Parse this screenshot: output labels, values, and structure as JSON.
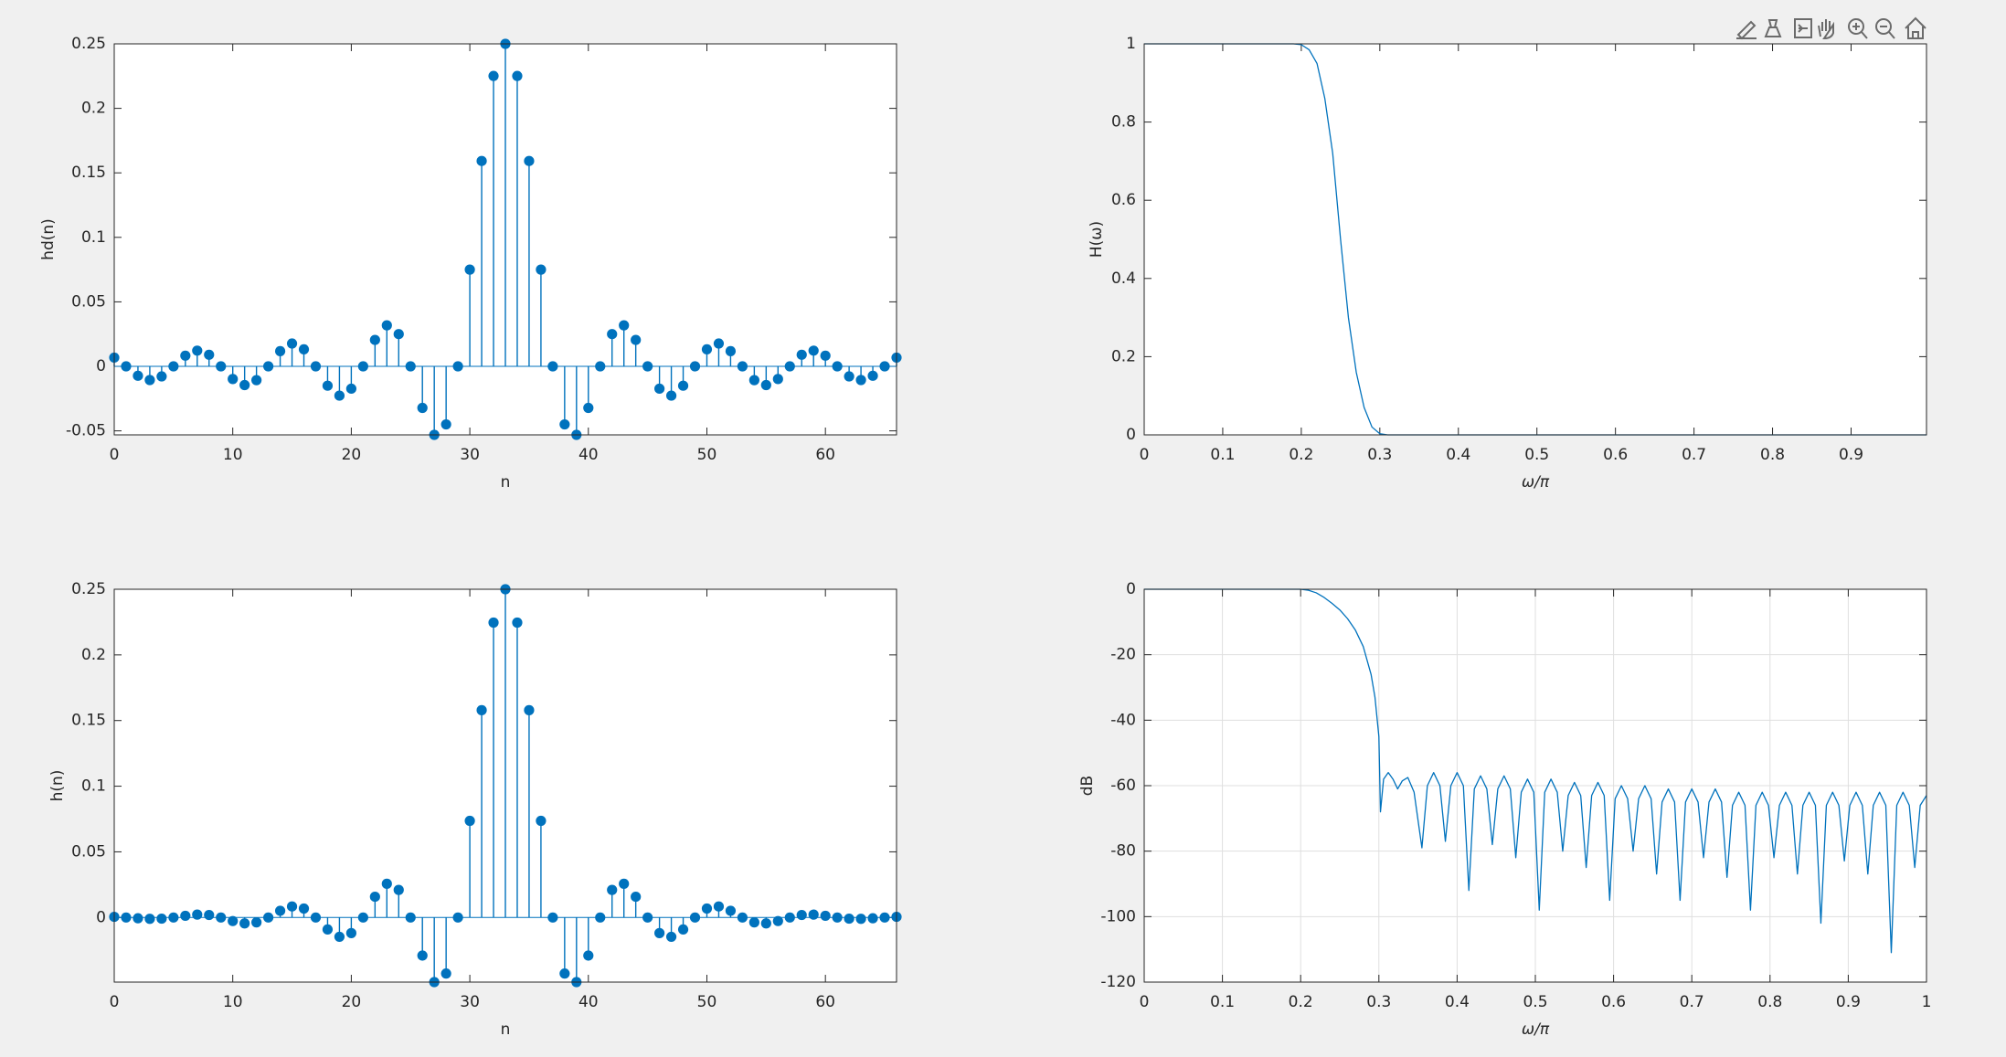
{
  "chart_data": [
    {
      "type": "stem",
      "ylabel": "hd(n)",
      "xlabel": "n",
      "color": "#0072bd",
      "xlim": [
        0,
        66
      ],
      "ylim": [
        -0.0531,
        0.25
      ],
      "xticks": [
        0,
        10,
        20,
        30,
        40,
        50,
        60
      ],
      "yticks": [
        -0.05,
        0,
        0.05,
        0.1,
        0.15,
        0.2,
        0.25
      ],
      "grid": false,
      "x": [
        0,
        1,
        2,
        3,
        4,
        5,
        6,
        7,
        8,
        9,
        10,
        11,
        12,
        13,
        14,
        15,
        16,
        17,
        18,
        19,
        20,
        21,
        22,
        23,
        24,
        25,
        26,
        27,
        28,
        29,
        30,
        31,
        32,
        33,
        34,
        35,
        36,
        37,
        38,
        39,
        40,
        41,
        42,
        43,
        44,
        45,
        46,
        47,
        48,
        49,
        50,
        51,
        52,
        53,
        54,
        55,
        56,
        57,
        58,
        59,
        60,
        61,
        62,
        63,
        64,
        65,
        66
      ],
      "values": [
        0.0068,
        0,
        -0.0073,
        -0.0106,
        -0.0078,
        0,
        0.0083,
        0.0122,
        0.009,
        0,
        -0.0098,
        -0.0145,
        -0.0107,
        0,
        0.0118,
        0.0177,
        0.0132,
        0,
        -0.015,
        -0.0227,
        -0.0173,
        0,
        0.0205,
        0.0318,
        0.025,
        0,
        -0.0322,
        -0.0531,
        -0.045,
        0,
        0.075,
        0.1592,
        0.2251,
        0.25,
        0.2251,
        0.1592,
        0.075,
        0,
        -0.045,
        -0.0531,
        -0.0322,
        0,
        0.025,
        0.0318,
        0.0205,
        0,
        -0.0173,
        -0.0227,
        -0.015,
        0,
        0.0132,
        0.0177,
        0.0118,
        0,
        -0.0107,
        -0.0145,
        -0.0098,
        0,
        0.009,
        0.0122,
        0.0083,
        0,
        -0.0078,
        -0.0106,
        -0.0073,
        0,
        0.0068
      ]
    },
    {
      "type": "line",
      "ylabel": "H(ω)",
      "xlabel": "ω/π",
      "color": "#0072bd",
      "xlim": [
        0,
        0.996
      ],
      "ylim": [
        0,
        1
      ],
      "xticks": [
        0,
        0.1,
        0.2,
        0.3,
        0.4,
        0.5,
        0.6,
        0.7,
        0.8,
        0.9
      ],
      "yticks": [
        0,
        0.2,
        0.4,
        0.6,
        0.8,
        1
      ],
      "grid": false,
      "x": [
        0,
        0.19,
        0.2,
        0.21,
        0.22,
        0.23,
        0.24,
        0.25,
        0.26,
        0.27,
        0.28,
        0.29,
        0.3,
        0.31,
        0.996
      ],
      "values": [
        1,
        1,
        0.998,
        0.985,
        0.95,
        0.86,
        0.72,
        0.5,
        0.3,
        0.16,
        0.07,
        0.02,
        0.003,
        0,
        0
      ]
    },
    {
      "type": "stem",
      "ylabel": "h(n)",
      "xlabel": "n",
      "color": "#0072bd",
      "xlim": [
        0,
        66
      ],
      "ylim": [
        -0.0492,
        0.25
      ],
      "xticks": [
        0,
        10,
        20,
        30,
        40,
        50,
        60
      ],
      "yticks": [
        0,
        0.05,
        0.1,
        0.15,
        0.2,
        0.25
      ],
      "grid": false,
      "x": [
        0,
        1,
        2,
        3,
        4,
        5,
        6,
        7,
        8,
        9,
        10,
        11,
        12,
        13,
        14,
        15,
        16,
        17,
        18,
        19,
        20,
        21,
        22,
        23,
        24,
        25,
        26,
        27,
        28,
        29,
        30,
        31,
        32,
        33,
        34,
        35,
        36,
        37,
        38,
        39,
        40,
        41,
        42,
        43,
        44,
        45,
        46,
        47,
        48,
        49,
        50,
        51,
        52,
        53,
        54,
        55,
        56,
        57,
        58,
        59,
        60,
        61,
        62,
        63,
        64,
        65,
        66
      ],
      "values": [
        0.0005,
        0,
        -0.0006,
        -0.001,
        -0.0009,
        0,
        0.0013,
        0.0022,
        0.0019,
        0,
        -0.0027,
        -0.0045,
        -0.0037,
        0,
        0.0051,
        0.0084,
        0.0068,
        0,
        -0.0091,
        -0.0147,
        -0.0119,
        0,
        0.0158,
        0.0257,
        0.021,
        0,
        -0.029,
        -0.0492,
        -0.0427,
        0,
        0.0736,
        0.1579,
        0.2246,
        0.25,
        0.2246,
        0.1579,
        0.0736,
        0,
        -0.0427,
        -0.0492,
        -0.029,
        0,
        0.021,
        0.0257,
        0.0158,
        0,
        -0.0119,
        -0.0147,
        -0.0091,
        0,
        0.0068,
        0.0084,
        0.0051,
        0,
        -0.0037,
        -0.0045,
        -0.0027,
        0,
        0.0019,
        0.0022,
        0.0013,
        0,
        -0.0009,
        -0.001,
        -0.0006,
        0,
        0.0005
      ]
    },
    {
      "type": "line",
      "ylabel": "dB",
      "xlabel": "ω/π",
      "color": "#0072bd",
      "xlim": [
        0,
        1
      ],
      "ylim": [
        -120,
        0
      ],
      "xticks": [
        0,
        0.1,
        0.2,
        0.3,
        0.4,
        0.5,
        0.6,
        0.7,
        0.8,
        0.9,
        1
      ],
      "yticks": [
        -120,
        -100,
        -80,
        -60,
        -40,
        -20,
        0
      ],
      "grid": true,
      "x": [
        0,
        0.1,
        0.2,
        0.21,
        0.22,
        0.23,
        0.24,
        0.25,
        0.26,
        0.27,
        0.28,
        0.29,
        0.295,
        0.3,
        0.302,
        0.306,
        0.312,
        0.318,
        0.324,
        0.33,
        0.337,
        0.345,
        0.355,
        0.362,
        0.37,
        0.378,
        0.385,
        0.392,
        0.4,
        0.408,
        0.415,
        0.422,
        0.43,
        0.438,
        0.445,
        0.452,
        0.46,
        0.468,
        0.475,
        0.482,
        0.49,
        0.498,
        0.505,
        0.512,
        0.52,
        0.528,
        0.535,
        0.542,
        0.55,
        0.558,
        0.565,
        0.572,
        0.58,
        0.588,
        0.595,
        0.602,
        0.61,
        0.618,
        0.625,
        0.632,
        0.64,
        0.648,
        0.655,
        0.662,
        0.67,
        0.678,
        0.685,
        0.692,
        0.7,
        0.708,
        0.715,
        0.722,
        0.73,
        0.738,
        0.745,
        0.752,
        0.76,
        0.768,
        0.775,
        0.782,
        0.79,
        0.798,
        0.805,
        0.812,
        0.82,
        0.828,
        0.835,
        0.842,
        0.85,
        0.858,
        0.865,
        0.872,
        0.88,
        0.888,
        0.895,
        0.902,
        0.91,
        0.918,
        0.925,
        0.932,
        0.94,
        0.948,
        0.955,
        0.962,
        0.97,
        0.978,
        0.985,
        0.992,
        1
      ],
      "values": [
        0,
        0,
        0,
        -0.3,
        -1.1,
        -2.5,
        -4.3,
        -6.3,
        -9,
        -12.5,
        -17.5,
        -26,
        -33,
        -45,
        -68,
        -58,
        -56,
        -58,
        -61,
        -58.5,
        -57.5,
        -62,
        -79,
        -60,
        -56,
        -60,
        -77,
        -60,
        -56,
        -60,
        -92,
        -61,
        -57,
        -61,
        -78,
        -61,
        -57,
        -61,
        -82,
        -62,
        -58,
        -62,
        -98,
        -62,
        -58,
        -62,
        -80,
        -63,
        -59,
        -63,
        -85,
        -63,
        -59,
        -63,
        -95,
        -64,
        -60,
        -64,
        -80,
        -64,
        -60,
        -64,
        -87,
        -65,
        -61,
        -65,
        -95,
        -65,
        -61,
        -65,
        -82,
        -65,
        -61,
        -65,
        -88,
        -66,
        -62,
        -66,
        -98,
        -66,
        -62,
        -66,
        -82,
        -66,
        -62,
        -66,
        -87,
        -66,
        -62,
        -66,
        -102,
        -66,
        -62,
        -66,
        -83,
        -66,
        -62,
        -66,
        -87,
        -66,
        -62,
        -66,
        -111,
        -66,
        -62,
        -66,
        -85,
        -66,
        -63
      ]
    }
  ]
}
